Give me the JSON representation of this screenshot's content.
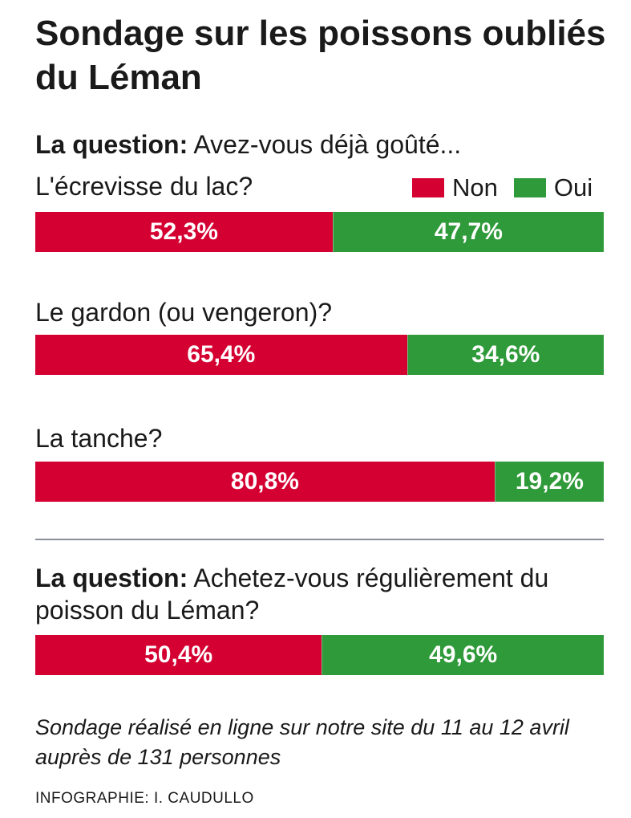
{
  "title": "Sondage sur les poissons oubliés du Léman",
  "colors": {
    "non": "#d50032",
    "oui": "#2f9a39"
  },
  "question1": {
    "label": "La question:",
    "text": " Avez-vous déjà goûté..."
  },
  "question2": {
    "label": "La question:",
    "text": " Achetez-vous régulièrement du poisson du Léman?"
  },
  "legend": {
    "non": "Non",
    "oui": "Oui"
  },
  "chart_data": {
    "type": "bar",
    "stacked": true,
    "orientation": "horizontal",
    "categories": [
      "L'écrevisse du lac?",
      "Le gardon (ou vengeron)?",
      "La tanche?",
      "Achetez-vous régulièrement du poisson du Léman?"
    ],
    "series": [
      {
        "name": "Non",
        "values": [
          52.3,
          65.4,
          80.8,
          50.4
        ],
        "labels": [
          "52,3%",
          "65,4%",
          "80,8%",
          "50,4%"
        ]
      },
      {
        "name": "Oui",
        "values": [
          47.7,
          34.6,
          19.2,
          49.6
        ],
        "labels": [
          "47,7%",
          "34,6%",
          "19,2%",
          "49,6%"
        ]
      }
    ],
    "legend_position": "top-right"
  },
  "bar_labels": [
    "L'écrevisse du lac?",
    "Le gardon (ou vengeron)?",
    "La tanche?"
  ],
  "note": "Sondage réalisé en ligne sur notre site du 11 au 12 avril auprès de 131 personnes",
  "credit": "INFOGRAPHIE: I. CAUDULLO"
}
